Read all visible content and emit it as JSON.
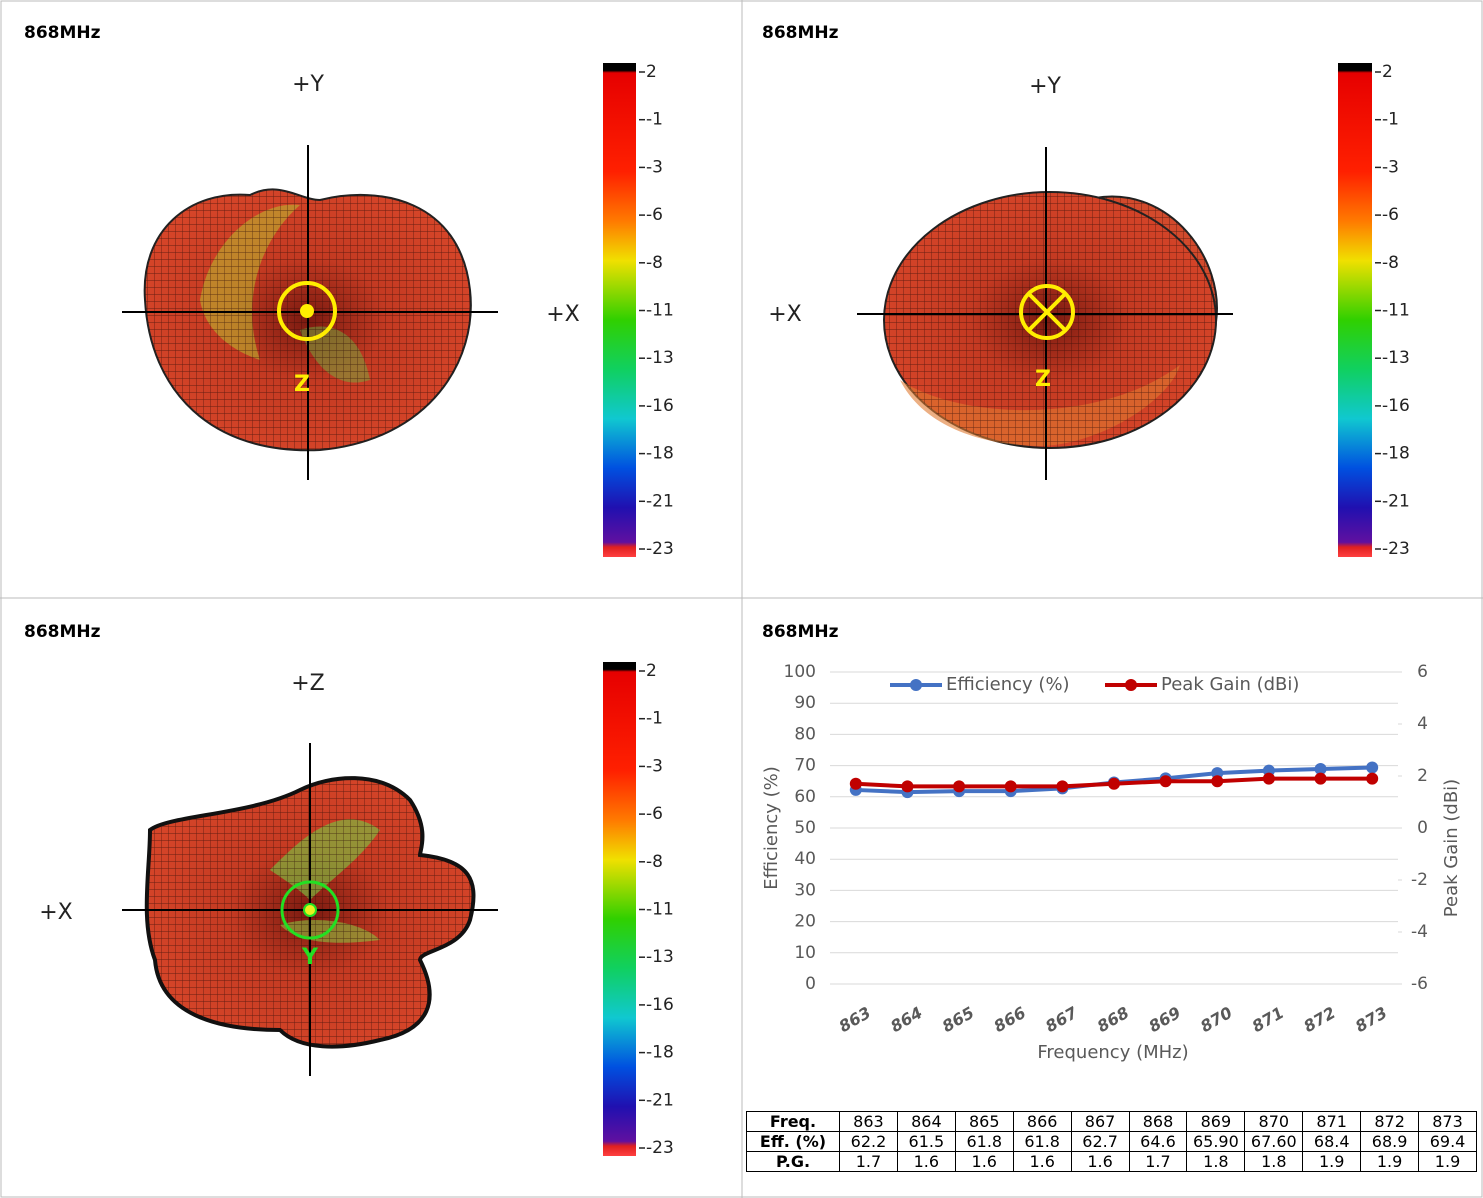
{
  "chart_data": [
    {
      "type": "surface",
      "title": "868MHz",
      "labels": {
        "top": "+Y",
        "side": "+X",
        "center": "Z"
      },
      "clim": [
        -23,
        2
      ],
      "cticks": [
        2,
        {
          "value": -0.5,
          "label": "-1"
        },
        -3,
        {
          "value": -5.5,
          "label": "-6"
        },
        -8,
        {
          "value": -10.5,
          "label": "-11"
        },
        -13,
        {
          "value": -15.5,
          "label": "-16"
        },
        -18,
        {
          "value": -20.5,
          "label": "-21"
        },
        -23
      ]
    },
    {
      "type": "surface",
      "title": "868MHz",
      "labels": {
        "top": "+Y",
        "side": "+X",
        "center": "Z"
      },
      "clim": [
        -23,
        2
      ],
      "cticks": [
        2,
        {
          "value": -0.5,
          "label": "-1"
        },
        -3,
        {
          "value": -5.5,
          "label": "-6"
        },
        -8,
        {
          "value": -10.5,
          "label": "-11"
        },
        -13,
        {
          "value": -15.5,
          "label": "-16"
        },
        -18,
        {
          "value": -20.5,
          "label": "-21"
        },
        -23
      ]
    },
    {
      "type": "surface",
      "title": "868MHz",
      "labels": {
        "top": "+Z",
        "side": "+X",
        "center": "Y"
      },
      "clim": [
        -23,
        2
      ],
      "cticks": [
        2,
        {
          "value": -0.5,
          "label": "-1"
        },
        -3,
        {
          "value": -5.5,
          "label": "-6"
        },
        -8,
        {
          "value": -10.5,
          "label": "-11"
        },
        -13,
        {
          "value": -15.5,
          "label": "-16"
        },
        -18,
        {
          "value": -20.5,
          "label": "-21"
        },
        -23
      ]
    },
    {
      "type": "line",
      "title": "868MHz",
      "x_label": "Frequency (MHz)",
      "y_label": "Efficiency (%)",
      "y2_label": "Peak Gain (dBi)",
      "categories": [
        "863",
        "864",
        "865",
        "866",
        "867",
        "868",
        "869",
        "870",
        "871",
        "872",
        "873"
      ],
      "ylim": [
        0,
        100
      ],
      "yticks": [
        0,
        10,
        20,
        30,
        40,
        50,
        60,
        70,
        80,
        90,
        100
      ],
      "y2lim": [
        -6,
        6
      ],
      "y2ticks": [
        -6,
        -4,
        -2,
        0,
        2,
        4,
        6
      ],
      "grid": true,
      "legend": "top",
      "series": [
        {
          "name": "Efficiency (%)",
          "color": "#4472c4",
          "values": [
            62.2,
            61.5,
            61.8,
            61.8,
            62.7,
            64.6,
            65.9,
            67.6,
            68.4,
            68.9,
            69.4
          ]
        },
        {
          "name": "Peak Gain (dBi)",
          "color": "#c00000",
          "axis": "y2",
          "values": [
            1.7,
            1.6,
            1.6,
            1.6,
            1.6,
            1.7,
            1.8,
            1.8,
            1.9,
            1.9,
            1.9
          ]
        }
      ]
    }
  ],
  "table": {
    "rows": [
      [
        "Freq.",
        "863",
        "864",
        "865",
        "866",
        "867",
        "868",
        "869",
        "870",
        "871",
        "872",
        "873"
      ],
      [
        "Eff. (%)",
        "62.2",
        "61.5",
        "61.8",
        "61.8",
        "62.7",
        "64.6",
        "65.90",
        "67.60",
        "68.4",
        "68.9",
        "69.4"
      ],
      [
        "P.G.",
        "1.7",
        "1.6",
        "1.6",
        "1.6",
        "1.6",
        "1.7",
        "1.8",
        "1.8",
        "1.9",
        "1.9",
        "1.9"
      ]
    ]
  }
}
